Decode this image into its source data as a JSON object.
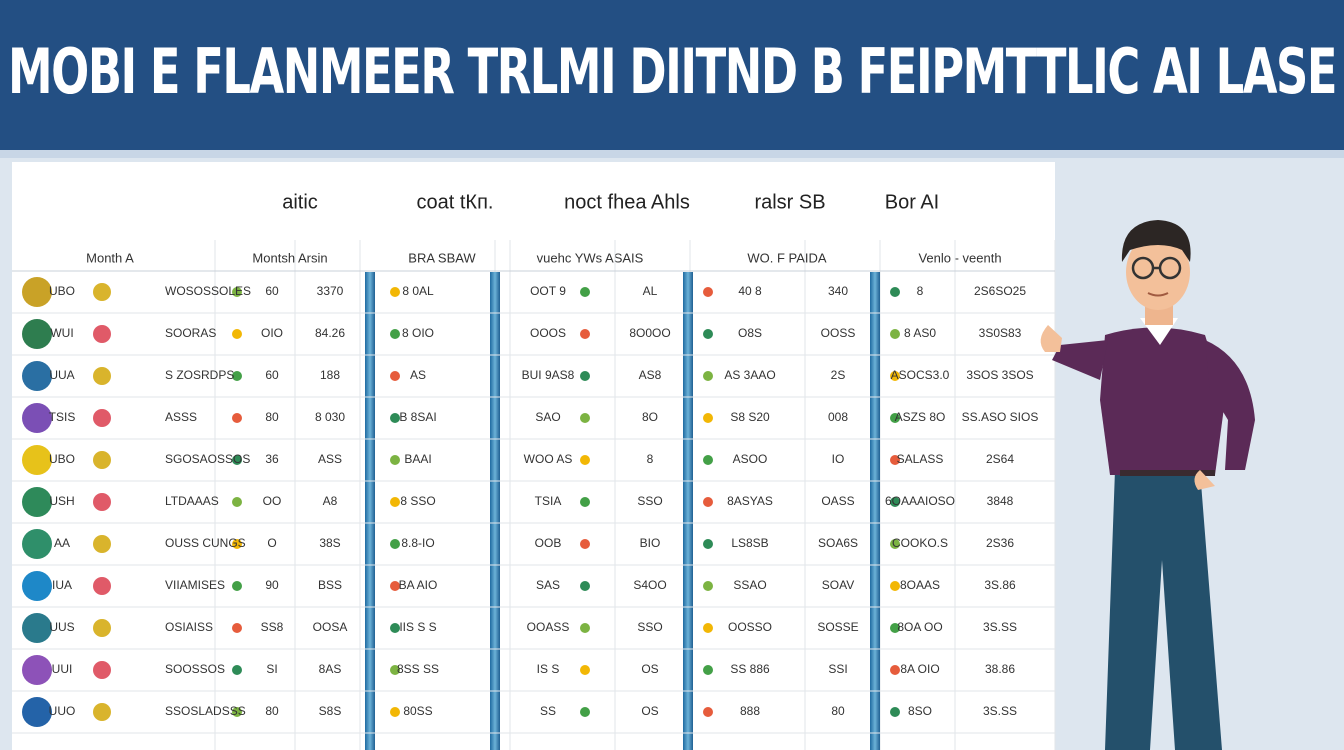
{
  "header": {
    "title": "MOBI E FLANMEER TRLMI DIITND  B FEIPMTTLIC AI LASE"
  },
  "table": {
    "groups": [
      "aitic",
      "coat tКп.",
      "noct fhea Ahls",
      "ralsr SB",
      "Bor AI"
    ],
    "columns": [
      "Month A",
      "Montsh Arsin",
      "BRA SBAW",
      "vuehc YWs ASAIS",
      "WO. F PAIDA",
      "Venlo - veenth"
    ],
    "rows": [
      [
        "UBO",
        "WOSOSSOLES",
        "60",
        "3370",
        "8 0AL",
        "OOT 9",
        "AL",
        "40 8",
        "340",
        "8",
        "2S6SO25"
      ],
      [
        "WUI",
        "SOORAS",
        "OIO",
        "84.26",
        "8 OIO",
        "OOOS",
        "8O0OO",
        "O8S",
        "OOSS",
        "8 AS0",
        "3S0S83"
      ],
      [
        "UUA",
        "S ZOSRDPS",
        "60",
        "188",
        "AS",
        "BUI 9AS8",
        "AS8",
        "AS 3AAO",
        "2S",
        "ASOCS3.0",
        "3SOS 3SOS"
      ],
      [
        "TSIS",
        "ASSS",
        "80",
        "8 030",
        "B 8SAI",
        "SAO",
        "8O",
        "S8 S20",
        "008",
        "ASZS 8O",
        "SS.ASO SIOS"
      ],
      [
        "UBO",
        "SGOSAOSSOS",
        "36",
        "ASS",
        "BAAI",
        "WOO AS",
        "8",
        "ASOO",
        "IO",
        "SALASS",
        "2S64"
      ],
      [
        "USH",
        "LTDAAAS",
        "OO",
        "A8",
        "8 SSO",
        "TSIA",
        "SSO",
        "8ASYAS",
        "OASS",
        "6OAAAIOSO",
        "3848"
      ],
      [
        "AA",
        "OUSS CUNGS",
        "O",
        "38S",
        "8.8-IO",
        "OOB",
        "BIO",
        "LS8SB",
        "SOA6S",
        "COOKO.S",
        "2S36"
      ],
      [
        "IUA",
        "VIIAMISES",
        "90",
        "BSS",
        "BA AIO",
        "SAS",
        "S4OO",
        "SSAO",
        "SOAV",
        "8OAAS",
        "3S.86"
      ],
      [
        "UUS",
        "OSIAISS",
        "SS8",
        "OOSA",
        "IIS S S",
        "OOASS",
        "SSO",
        "OOSSO",
        "SOSSE",
        "8OA OO",
        "3S.SS"
      ],
      [
        "UUI",
        "SOOSSOS",
        "SI",
        "8AS",
        "8SS SS",
        "IS S",
        "OS",
        "SS 886",
        "SSI",
        "8A OIO",
        "38.86"
      ],
      [
        "UUO",
        "SSOSLADSSS",
        "80",
        "S8S",
        "80SS",
        "SS",
        "OS",
        "888",
        "80",
        "8SO",
        "3S.SS"
      ]
    ]
  }
}
